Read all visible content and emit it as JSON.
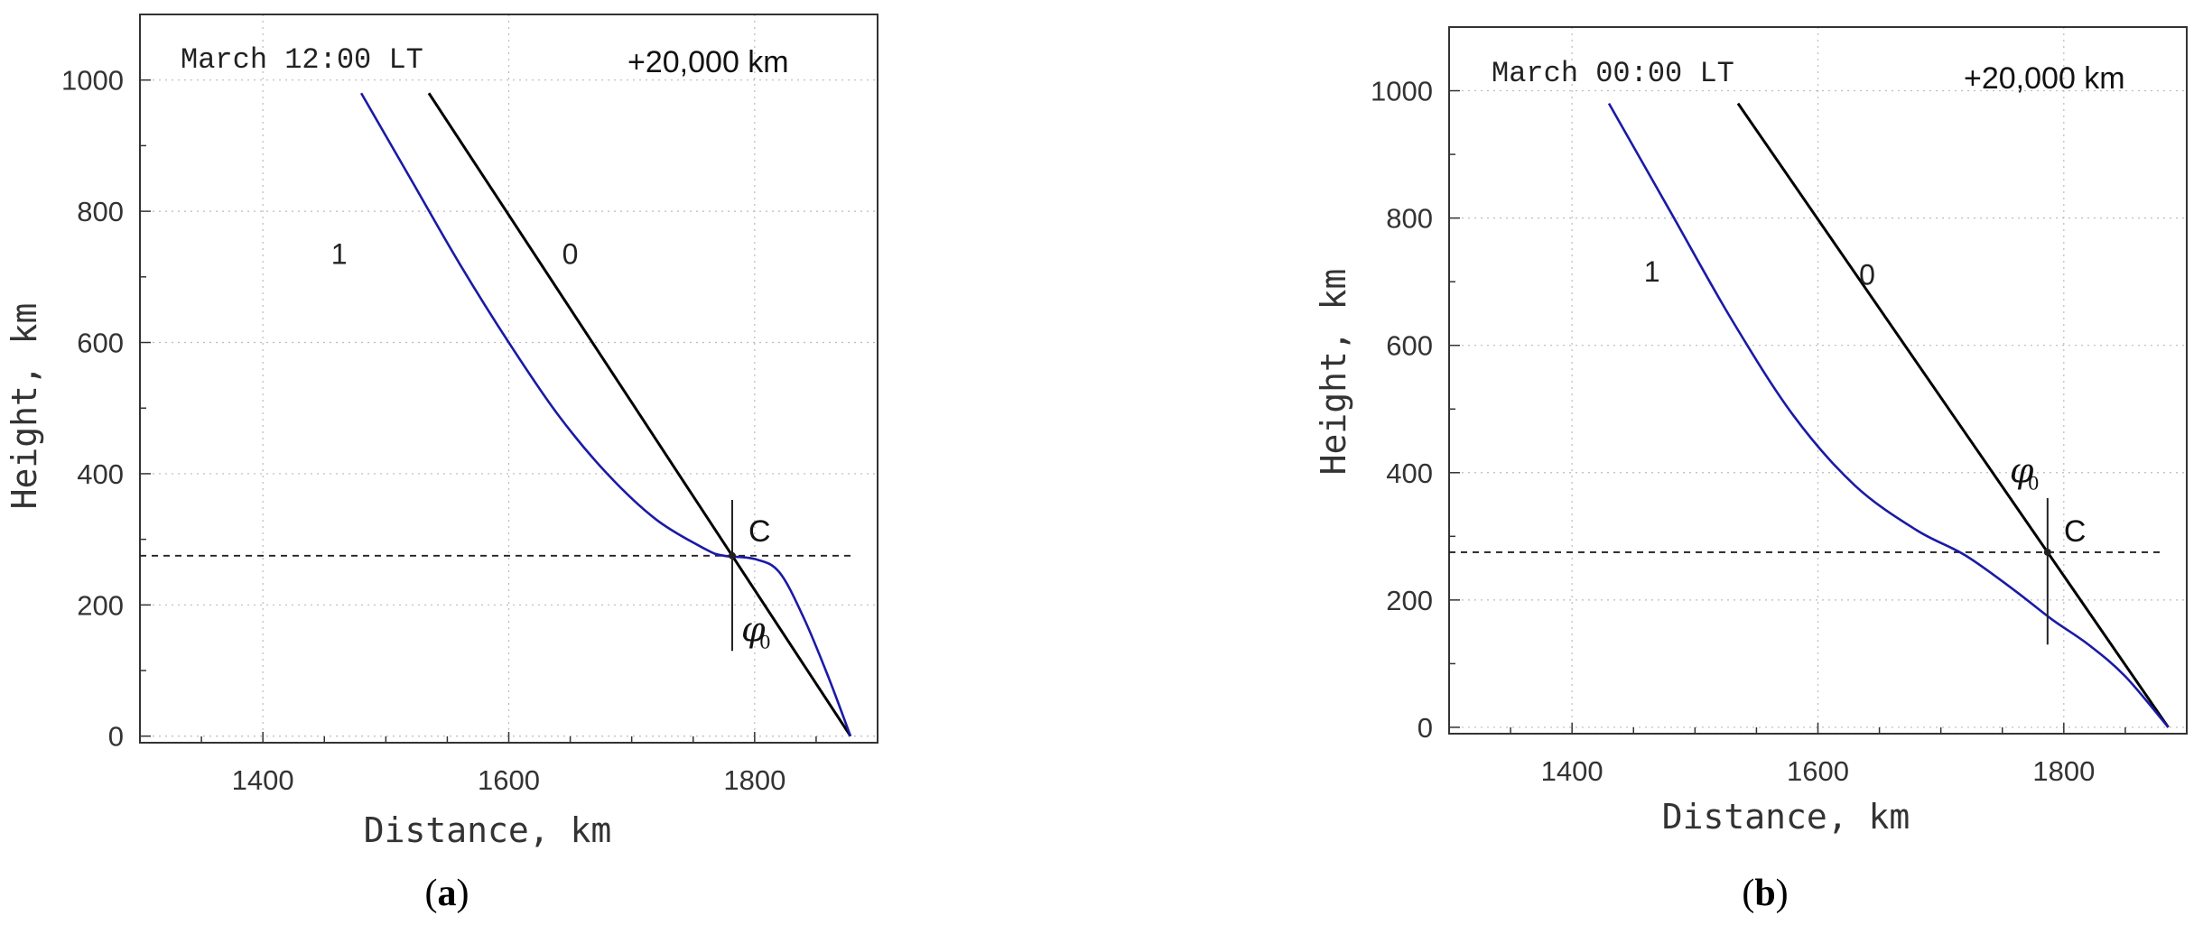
{
  "chart_data": [
    {
      "type": "line",
      "panel_label": "a",
      "annotation_left": "March  12:00 LT",
      "annotation_right": "+20,000 km",
      "xlabel": "Distance,  km",
      "ylabel": "Height,  km",
      "xlim": [
        1300,
        1900
      ],
      "ylim": [
        -10,
        1100
      ],
      "x_ticks": [
        1400,
        1600,
        1800
      ],
      "y_ticks": [
        0,
        200,
        400,
        600,
        800,
        1000
      ],
      "grid": true,
      "reference_height": 275,
      "point_label": "C",
      "angle_label": "φ",
      "angle_subscript": "0",
      "series": [
        {
          "name": "0",
          "color": "#000000",
          "x": [
            1535,
            1878
          ],
          "y": [
            980,
            0
          ]
        },
        {
          "name": "1",
          "color": "#1a1aa6",
          "x": [
            1480,
            1520,
            1560,
            1600,
            1640,
            1680,
            1720,
            1760,
            1775,
            1800,
            1820,
            1840,
            1860,
            1878
          ],
          "y": [
            980,
            850,
            720,
            600,
            490,
            400,
            330,
            285,
            275,
            270,
            250,
            180,
            90,
            0
          ]
        }
      ],
      "curve_label_positions": [
        {
          "name": "1",
          "x": 1462,
          "y": 720
        },
        {
          "name": "0",
          "x": 1650,
          "y": 720
        }
      ]
    },
    {
      "type": "line",
      "panel_label": "b",
      "annotation_left": "March  00:00 LT",
      "annotation_right": "+20,000 km",
      "xlabel": "Distance,  km",
      "ylabel": "Height,  km",
      "xlim": [
        1300,
        1900
      ],
      "ylim": [
        -10,
        1100
      ],
      "x_ticks": [
        1400,
        1600,
        1800
      ],
      "y_ticks": [
        0,
        200,
        400,
        600,
        800,
        1000
      ],
      "grid": true,
      "reference_height": 275,
      "point_label": "C",
      "angle_label": "φ",
      "angle_subscript": "0",
      "series": [
        {
          "name": "0",
          "color": "#000000",
          "x": [
            1535,
            1885
          ],
          "y": [
            980,
            0
          ]
        },
        {
          "name": "1",
          "color": "#1a1aa6",
          "x": [
            1430,
            1480,
            1530,
            1580,
            1630,
            1680,
            1720,
            1760,
            1790,
            1820,
            1850,
            1885
          ],
          "y": [
            980,
            810,
            640,
            490,
            380,
            310,
            270,
            215,
            170,
            130,
            80,
            0
          ]
        }
      ],
      "curve_label_positions": [
        {
          "name": "1",
          "x": 1465,
          "y": 700
        },
        {
          "name": "0",
          "x": 1640,
          "y": 695
        }
      ]
    }
  ]
}
